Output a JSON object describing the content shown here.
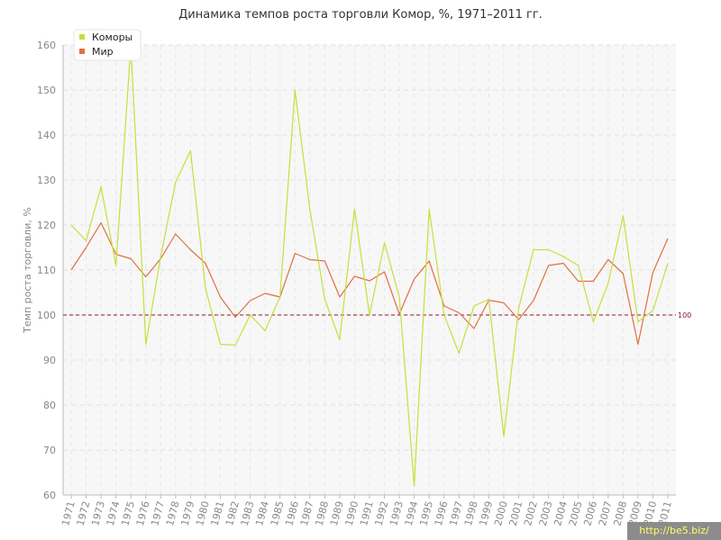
{
  "chart_data": {
    "type": "line",
    "title": "Динамика темпов роста торговли Комор, %, 1971–2011 гг.",
    "ylabel": "Темп роста торговли, %",
    "ylim": [
      60,
      160
    ],
    "yticks": [
      60,
      70,
      80,
      90,
      100,
      110,
      120,
      130,
      140,
      150,
      160
    ],
    "grid": true,
    "legend_position": "top-left",
    "reference_line": {
      "value": 100,
      "label": "100",
      "color": "#8b1a2b"
    },
    "x": [
      "1971",
      "1972",
      "1973",
      "1974",
      "1975",
      "1976",
      "1977",
      "1978",
      "1979",
      "1980",
      "1981",
      "1982",
      "1983",
      "1984",
      "1985",
      "1986",
      "1987",
      "1988",
      "1989",
      "1990",
      "1991",
      "1992",
      "1993",
      "1994",
      "1995",
      "1996",
      "1997",
      "1998",
      "1999",
      "2000",
      "2001",
      "2002",
      "2003",
      "2004",
      "2005",
      "2006",
      "2007",
      "2008",
      "2009",
      "2010",
      "2011"
    ],
    "series": [
      {
        "name": "Коморы",
        "color": "#c5e03a",
        "values": [
          120,
          116.5,
          128.5,
          111,
          160,
          93.5,
          113,
          129.5,
          136.5,
          106,
          93.5,
          93.3,
          100,
          96.5,
          104,
          150,
          123.5,
          103.5,
          94.5,
          123.5,
          100,
          116,
          104,
          62,
          123.5,
          100,
          91.5,
          102,
          103.5,
          73,
          101.5,
          114.5,
          114.5,
          113,
          111,
          98.5,
          107,
          122,
          98.5,
          101,
          111.5
        ]
      },
      {
        "name": "Мир",
        "color": "#e07040",
        "values": [
          110,
          115,
          120.5,
          113.5,
          112.5,
          108.5,
          112.5,
          118,
          114.5,
          111.5,
          104,
          99.5,
          103.2,
          104.8,
          104,
          113.7,
          112.3,
          112,
          104,
          108.6,
          107.6,
          109.6,
          100.2,
          108,
          112,
          102,
          100.5,
          97,
          103.3,
          102.7,
          99,
          103.2,
          111,
          111.5,
          107.5,
          107.5,
          112.3,
          109.2,
          93.5,
          109.5,
          117
        ]
      }
    ]
  },
  "watermark": "http://be5.biz/"
}
